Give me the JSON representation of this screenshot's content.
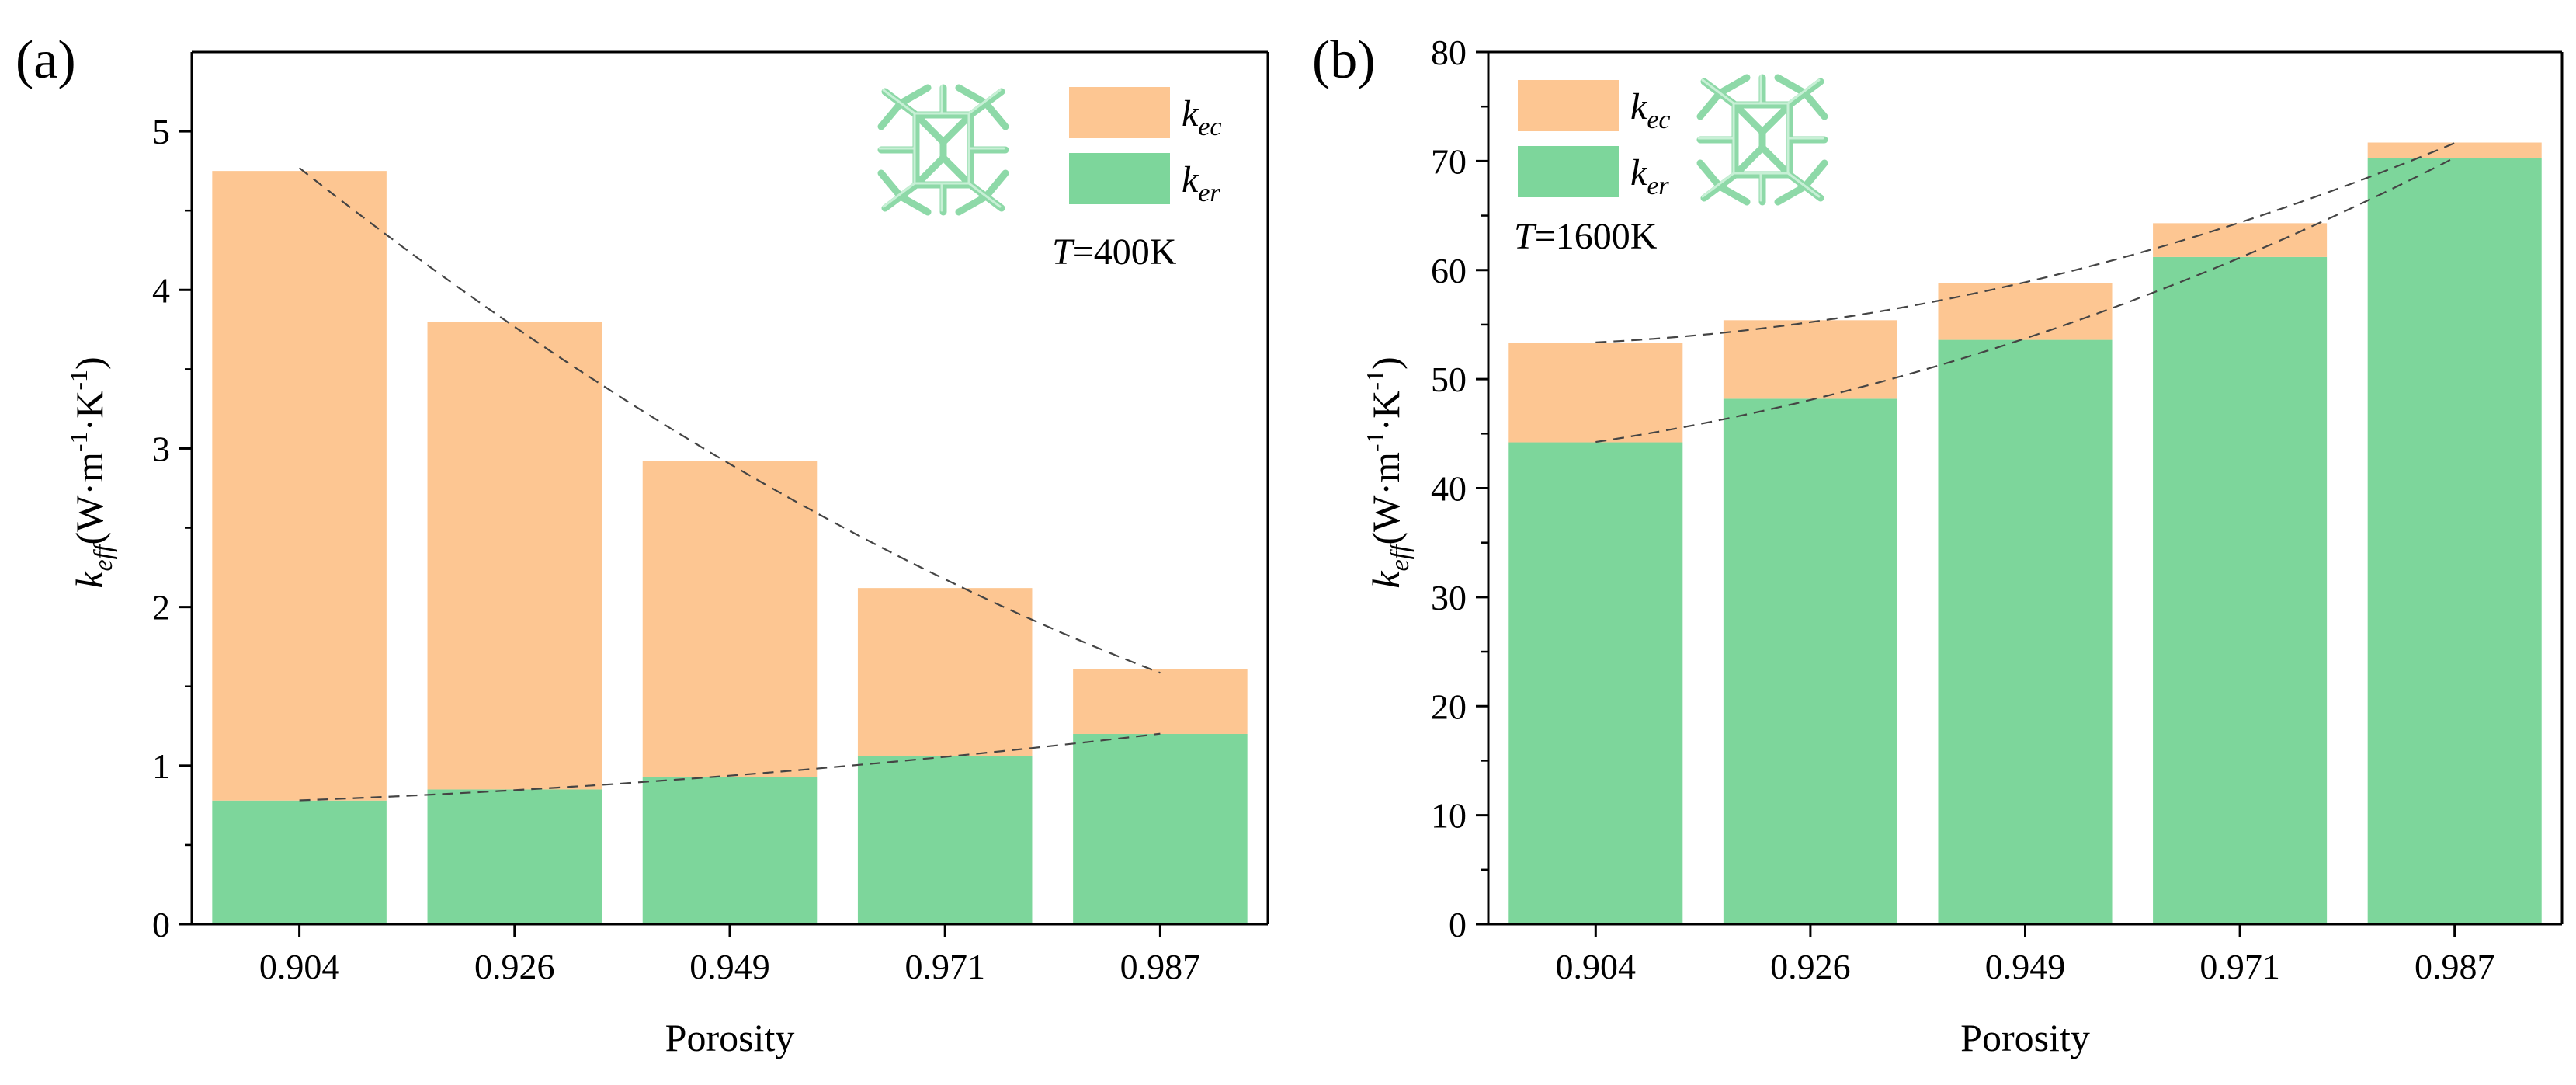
{
  "chart_data": [
    {
      "panel_label": "(a)",
      "type": "bar",
      "stacked": true,
      "categories": [
        "0.904",
        "0.926",
        "0.949",
        "0.971",
        "0.987"
      ],
      "series": [
        {
          "name": "k_er",
          "legend": {
            "main": "k",
            "sub": "er"
          },
          "color": "#7dd69b",
          "values": [
            0.78,
            0.85,
            0.93,
            1.06,
            1.2
          ]
        },
        {
          "name": "k_ec",
          "legend": {
            "main": "k",
            "sub": "ec"
          },
          "color": "#fdc692",
          "values": [
            3.97,
            2.95,
            1.99,
            1.06,
            0.41
          ]
        }
      ],
      "totals": [
        4.75,
        3.8,
        2.92,
        2.12,
        1.61
      ],
      "xlabel": "Porosity",
      "ylabel": {
        "main": "k",
        "sub": "eff",
        "unit": "(W·m",
        "sup1": "-1",
        "mid": "·K",
        "sup2": "-1",
        "close": ")"
      },
      "ylim": [
        0,
        5.5
      ],
      "yticks": [
        "0",
        "1",
        "2",
        "3",
        "4",
        "5"
      ],
      "annotation": {
        "italic": "T",
        "rest": "=400K"
      },
      "legend_position": "top-right",
      "trend_lines": "dashed fit through bar tops and k_er tops"
    },
    {
      "panel_label": "(b)",
      "type": "bar",
      "stacked": true,
      "categories": [
        "0.904",
        "0.926",
        "0.949",
        "0.971",
        "0.987"
      ],
      "series": [
        {
          "name": "k_er",
          "legend": {
            "main": "k",
            "sub": "er"
          },
          "color": "#7dd69b",
          "values": [
            44.2,
            48.2,
            53.6,
            61.2,
            70.3
          ]
        },
        {
          "name": "k_ec",
          "legend": {
            "main": "k",
            "sub": "ec"
          },
          "color": "#fdc692",
          "values": [
            9.1,
            7.2,
            5.2,
            3.1,
            1.4
          ]
        }
      ],
      "totals": [
        53.3,
        55.4,
        58.8,
        64.3,
        71.7
      ],
      "xlabel": "Porosity",
      "ylabel": {
        "main": "k",
        "sub": "eff",
        "unit": "(W·m",
        "sup1": "-1",
        "mid": "·K",
        "sup2": "-1",
        "close": ")"
      },
      "ylim": [
        0,
        80
      ],
      "yticks": [
        "0",
        "10",
        "20",
        "30",
        "40",
        "50",
        "60",
        "70",
        "80"
      ],
      "annotation": {
        "italic": "T",
        "rest": "=1600K"
      },
      "legend_position": "top-left",
      "trend_lines": "dashed fit through bar tops and k_er tops"
    }
  ],
  "colors": {
    "er": "#7dd69b",
    "ec": "#fdc692",
    "structure": "#8ed9a8"
  }
}
